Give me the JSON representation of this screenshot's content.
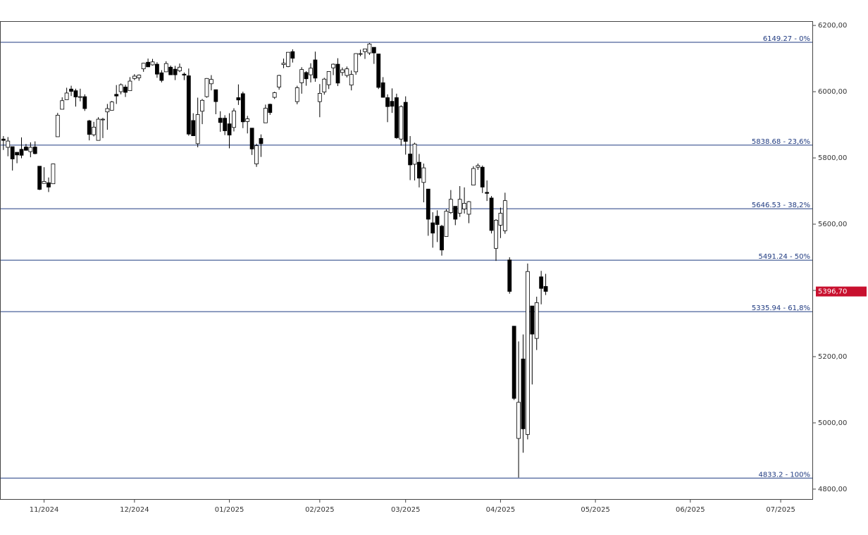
{
  "chart_data": {
    "type": "candlestick",
    "x": [
      0,
      1,
      2,
      3,
      4,
      5,
      6,
      7,
      8,
      9,
      10,
      11,
      12,
      13,
      14,
      15,
      16,
      17,
      18,
      19,
      20,
      21,
      22,
      23,
      24,
      25,
      26,
      27,
      28,
      29,
      30,
      31,
      32,
      33,
      34,
      35,
      36,
      37,
      38,
      39,
      40,
      41,
      42,
      43,
      44,
      45,
      46,
      47,
      48,
      49,
      50,
      51,
      52,
      53,
      54,
      55,
      56,
      57,
      58,
      59,
      60,
      61,
      62,
      63,
      64,
      65,
      66,
      67,
      68,
      69,
      70,
      71,
      72,
      73,
      74,
      75,
      76,
      77,
      78,
      79,
      80,
      81,
      82,
      83,
      84,
      85,
      86,
      87,
      88,
      89,
      90,
      91,
      92,
      93,
      94,
      95,
      96,
      97,
      98,
      99,
      100,
      101,
      102,
      103,
      104,
      105,
      106,
      107,
      108,
      109,
      110,
      111,
      112,
      113,
      114,
      115,
      116,
      117,
      118,
      119,
      120
    ],
    "open": [
      5857,
      5832,
      5834,
      5817,
      5826,
      5833,
      5819,
      5833,
      5775,
      5723,
      5725,
      5722,
      5864,
      5947,
      5976,
      6008,
      6003,
      5985,
      5985,
      5912,
      5870,
      5853,
      5917,
      5939,
      5944,
      5992,
      6000,
      6014,
      6003,
      6040,
      6042,
      6069,
      6089,
      6081,
      6083,
      6057,
      6060,
      6074,
      6068,
      6063,
      6053,
      6048,
      5913,
      5843,
      5941,
      5985,
      6024,
      6006,
      5920,
      5920,
      5903,
      5892,
      5982,
      5994,
      5910,
      5890,
      5782,
      5859,
      5906,
      5962,
      5983,
      6014,
      6082,
      6076,
      6121,
      5970,
      6027,
      6058,
      6051,
      6096,
      5970,
      5999,
      6021,
      6072,
      6083,
      6058,
      6049,
      6020,
      6060,
      6115,
      6121,
      6117,
      6134,
      6114,
      6027,
      5982,
      5971,
      5982,
      5857,
      5968,
      5812,
      5781,
      5787,
      5726,
      5706,
      5604,
      5624,
      5594,
      5563,
      5635,
      5654,
      5633,
      5646,
      5630,
      5718,
      5772,
      5772,
      5696,
      5679,
      5527,
      5597,
      5580,
      5492,
      5292,
      4953,
      5193,
      4965,
      5353,
      5255,
      5441,
      5412
    ],
    "high": [
      5866,
      5863,
      5834,
      5817,
      5862,
      5842,
      5847,
      5850,
      5775,
      5772,
      5741,
      5783,
      5936,
      5983,
      6012,
      6018,
      6009,
      6009,
      5992,
      5915,
      5909,
      5923,
      5921,
      5963,
      5972,
      6020,
      6025,
      6021,
      6044,
      6053,
      6052,
      6087,
      6100,
      6099,
      6089,
      6065,
      6092,
      6079,
      6078,
      6085,
      6058,
      6070,
      5935,
      5982,
      5978,
      6041,
      6050,
      6006,
      5941,
      5929,
      5935,
      5950,
      6022,
      6000,
      5927,
      5890,
      5843,
      5871,
      5961,
      5964,
      6000,
      6051,
      6100,
      6119,
      6128,
      6018,
      6074,
      6062,
      6086,
      6121,
      6023,
      6042,
      6062,
      6085,
      6101,
      6073,
      6076,
      6064,
      6116,
      6127,
      6129,
      6147,
      6134,
      6114,
      6044,
      5992,
      6010,
      5994,
      5959,
      5986,
      5866,
      5846,
      5812,
      5783,
      5706,
      5636,
      5642,
      5598,
      5645,
      5703,
      5654,
      5715,
      5711,
      5670,
      5775,
      5783,
      5777,
      5732,
      5685,
      5615,
      5650,
      5695,
      5500,
      5292,
      5246,
      5267,
      5481,
      5353,
      5381,
      5459,
      5450
    ],
    "low": [
      5824,
      5805,
      5762,
      5784,
      5799,
      5822,
      5802,
      5811,
      5703,
      5723,
      5697,
      5722,
      5864,
      5947,
      5976,
      5987,
      5955,
      5971,
      5942,
      5853,
      5865,
      5853,
      5860,
      5885,
      5944,
      5963,
      5992,
      5984,
      6003,
      6035,
      6033,
      6060,
      6075,
      6079,
      6042,
      6028,
      6060,
      6051,
      6035,
      6059,
      6035,
      5867,
      5866,
      5832,
      5902,
      5982,
      6004,
      5932,
      5879,
      5869,
      5829,
      5880,
      5960,
      5890,
      5874,
      5809,
      5773,
      5803,
      5906,
      5930,
      5978,
      6006,
      6071,
      6074,
      6088,
      5962,
      5994,
      6018,
      6028,
      6030,
      5923,
      5991,
      6008,
      6050,
      6017,
      6048,
      6043,
      6004,
      6051,
      6107,
      6099,
      6111,
      6084,
      6008,
      5982,
      5908,
      5936,
      5858,
      5837,
      5810,
      5733,
      5732,
      5711,
      5666,
      5565,
      5529,
      5546,
      5505,
      5563,
      5631,
      5597,
      5622,
      5632,
      5603,
      5718,
      5764,
      5694,
      5670,
      5572,
      5489,
      5558,
      5571,
      5390,
      5069,
      4835,
      4910,
      4950,
      5116,
      5220,
      5358,
      5386
    ],
    "close": [
      5853,
      5851,
      5797,
      5809,
      5808,
      5823,
      5832,
      5813,
      5705,
      5729,
      5712,
      5782,
      5929,
      5973,
      5996,
      6001,
      5984,
      5985,
      5949,
      5871,
      5893,
      5917,
      5917,
      5949,
      5969,
      5987,
      6021,
      5998,
      6032,
      6047,
      6050,
      6086,
      6075,
      6090,
      6053,
      6034,
      6085,
      6051,
      6051,
      6074,
      6050,
      5872,
      5867,
      5931,
      5974,
      6040,
      6037,
      5970,
      5907,
      5882,
      5869,
      5942,
      5975,
      5909,
      5918,
      5827,
      5837,
      5843,
      5950,
      5937,
      5997,
      6049,
      6086,
      6119,
      6101,
      6012,
      6067,
      6039,
      6071,
      6041,
      5995,
      6038,
      6061,
      6083,
      6026,
      6066,
      6069,
      6052,
      6115,
      6115,
      6129,
      6144,
      6117,
      6013,
      5983,
      5955,
      5956,
      5861,
      5955,
      5850,
      5779,
      5842,
      5739,
      5770,
      5615,
      5573,
      5599,
      5522,
      5639,
      5675,
      5615,
      5675,
      5663,
      5668,
      5768,
      5777,
      5712,
      5693,
      5581,
      5612,
      5633,
      5671,
      5397,
      5074,
      5062,
      4982,
      5457,
      5268,
      5363,
      5406,
      5397
    ],
    "xlim": [
      -0.6,
      179
    ],
    "xticks": [
      {
        "value": 9,
        "label": "11/2024"
      },
      {
        "value": 29,
        "label": "12/2024"
      },
      {
        "value": 50,
        "label": "01/2025"
      },
      {
        "value": 70,
        "label": "02/2025"
      },
      {
        "value": 89,
        "label": "03/2025"
      },
      {
        "value": 110,
        "label": "04/2025"
      },
      {
        "value": 131,
        "label": "05/2025"
      },
      {
        "value": 152,
        "label": "06/2025"
      },
      {
        "value": 172,
        "label": "07/2025"
      }
    ],
    "ylim": [
      4770,
      6213
    ],
    "yticks": [
      {
        "value": 4800,
        "label": "4800,00"
      },
      {
        "value": 5000,
        "label": "5000,00"
      },
      {
        "value": 5200,
        "label": "5200,00"
      },
      {
        "value": 5400,
        "label": "5400,00"
      },
      {
        "value": 5600,
        "label": "5600,00"
      },
      {
        "value": 5800,
        "label": "5800,00"
      },
      {
        "value": 6000,
        "label": "6000,00"
      },
      {
        "value": 6200,
        "label": "6200,00"
      }
    ],
    "levels": [
      {
        "value": 6149.27,
        "label": "6149.27 - 0%"
      },
      {
        "value": 5838.68,
        "label": "5838.68 - 23,6%"
      },
      {
        "value": 5646.53,
        "label": "5646.53 - 38,2%"
      },
      {
        "value": 5491.24,
        "label": "5491.24 - 50%"
      },
      {
        "value": 5335.94,
        "label": "5335.94 - 61,8%"
      },
      {
        "value": 4833.2,
        "label": "4833.2 - 100%"
      }
    ],
    "level_color": "#1f3a80",
    "last_price": {
      "value": 5396.7,
      "label": "5396,70"
    },
    "last_price_color": "#c8102e",
    "up_color": "#ffffff",
    "down_color": "#000000"
  }
}
